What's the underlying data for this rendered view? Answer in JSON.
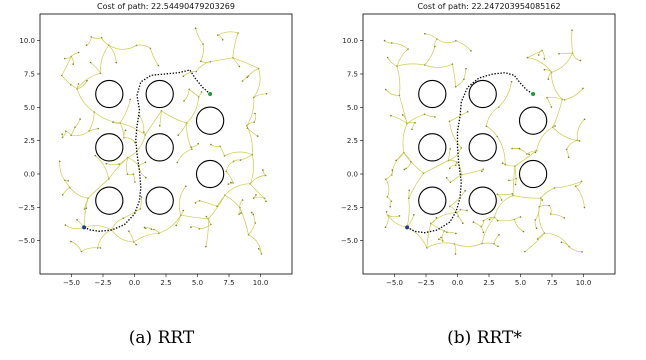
{
  "figure": {
    "panels": [
      {
        "caption": "(a) RRT",
        "title": "Cost of path: 22.54490479203269"
      },
      {
        "caption": "(b) RRT*",
        "title": "Cost of path: 22.247203954085162"
      }
    ]
  },
  "chart_data": [
    {
      "type": "scatter",
      "title": "Cost of path: 22.54490479203269",
      "xlabel": "",
      "ylabel": "",
      "xlim": [
        -7.5,
        12.5
      ],
      "ylim": [
        -7.5,
        12.0
      ],
      "xticks": [
        -5.0,
        -2.5,
        0.0,
        2.5,
        5.0,
        7.5,
        10.0
      ],
      "xtick_labels": [
        "−5.0",
        "−2.5",
        "0.0",
        "2.5",
        "5.0",
        "7.5",
        "10.0"
      ],
      "yticks": [
        -5.0,
        -2.5,
        0.0,
        2.5,
        5.0,
        7.5,
        10.0
      ],
      "ytick_labels": [
        "−5.0",
        "−2.5",
        "0.0",
        "2.5",
        "5.0",
        "7.5",
        "10.0"
      ],
      "grid": false,
      "obstacles": [
        {
          "x": -2.0,
          "y": 6.0,
          "r": 1.0
        },
        {
          "x": 2.0,
          "y": 6.0,
          "r": 1.0
        },
        {
          "x": -2.0,
          "y": 2.0,
          "r": 1.0
        },
        {
          "x": 2.0,
          "y": 2.0,
          "r": 1.0
        },
        {
          "x": 6.0,
          "y": 4.0,
          "r": 1.0
        },
        {
          "x": 6.0,
          "y": 0.0,
          "r": 1.0
        },
        {
          "x": -2.0,
          "y": -2.0,
          "r": 1.0
        },
        {
          "x": 2.0,
          "y": -2.0,
          "r": 1.0
        }
      ],
      "start": {
        "x": -4.0,
        "y": -4.0
      },
      "goal": {
        "x": 6.0,
        "y": 6.0
      },
      "path": [
        [
          -4.0,
          -4.0
        ],
        [
          -3.5,
          -4.2
        ],
        [
          -2.8,
          -4.3
        ],
        [
          -1.8,
          -4.2
        ],
        [
          -0.8,
          -3.8
        ],
        [
          0.0,
          -3.0
        ],
        [
          0.4,
          -2.0
        ],
        [
          0.5,
          -1.0
        ],
        [
          0.4,
          0.2
        ],
        [
          0.2,
          1.5
        ],
        [
          0.1,
          2.6
        ],
        [
          0.2,
          3.6
        ],
        [
          0.4,
          4.8
        ],
        [
          0.2,
          5.9
        ],
        [
          0.5,
          6.9
        ],
        [
          1.3,
          7.4
        ],
        [
          2.4,
          7.5
        ],
        [
          3.5,
          7.6
        ],
        [
          4.4,
          7.8
        ],
        [
          4.8,
          7.2
        ],
        [
          5.4,
          6.5
        ],
        [
          6.0,
          6.0
        ]
      ],
      "tree_seed": 7
    },
    {
      "type": "scatter",
      "title": "Cost of path: 22.247203954085162",
      "xlabel": "",
      "ylabel": "",
      "xlim": [
        -7.5,
        12.5
      ],
      "ylim": [
        -7.5,
        12.0
      ],
      "xticks": [
        -5.0,
        -2.5,
        0.0,
        2.5,
        5.0,
        7.5,
        10.0
      ],
      "xtick_labels": [
        "−5.0",
        "−2.5",
        "0.0",
        "2.5",
        "5.0",
        "7.5",
        "10.0"
      ],
      "yticks": [
        -5.0,
        -2.5,
        0.0,
        2.5,
        5.0,
        7.5,
        10.0
      ],
      "ytick_labels": [
        "−5.0",
        "−2.5",
        "0.0",
        "2.5",
        "5.0",
        "7.5",
        "10.0"
      ],
      "grid": false,
      "obstacles": [
        {
          "x": -2.0,
          "y": 6.0,
          "r": 1.0
        },
        {
          "x": 2.0,
          "y": 6.0,
          "r": 1.0
        },
        {
          "x": -2.0,
          "y": 2.0,
          "r": 1.0
        },
        {
          "x": 2.0,
          "y": 2.0,
          "r": 1.0
        },
        {
          "x": 6.0,
          "y": 4.0,
          "r": 1.0
        },
        {
          "x": 6.0,
          "y": 0.0,
          "r": 1.0
        },
        {
          "x": -2.0,
          "y": -2.0,
          "r": 1.0
        },
        {
          "x": 2.0,
          "y": -2.0,
          "r": 1.0
        }
      ],
      "start": {
        "x": -4.0,
        "y": -4.0
      },
      "goal": {
        "x": 6.0,
        "y": 6.0
      },
      "path": [
        [
          -4.0,
          -4.0
        ],
        [
          -3.4,
          -4.3
        ],
        [
          -2.6,
          -4.4
        ],
        [
          -1.6,
          -4.2
        ],
        [
          -0.6,
          -3.6
        ],
        [
          -0.1,
          -2.8
        ],
        [
          0.2,
          -1.8
        ],
        [
          0.3,
          -0.6
        ],
        [
          0.1,
          0.8
        ],
        [
          0.0,
          2.0
        ],
        [
          0.0,
          3.2
        ],
        [
          0.2,
          4.3
        ],
        [
          0.3,
          5.4
        ],
        [
          0.8,
          6.5
        ],
        [
          1.7,
          7.2
        ],
        [
          2.8,
          7.5
        ],
        [
          3.8,
          7.6
        ],
        [
          4.5,
          7.4
        ],
        [
          5.0,
          6.8
        ],
        [
          5.5,
          6.3
        ],
        [
          6.0,
          6.0
        ]
      ],
      "tree_seed": 19
    }
  ]
}
